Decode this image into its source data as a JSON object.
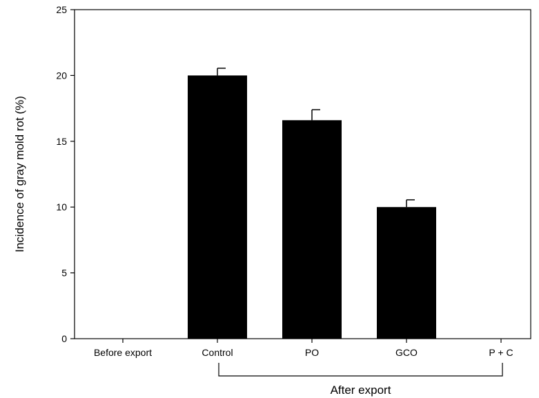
{
  "chart_data": {
    "type": "bar",
    "title": "",
    "ylabel": "Incidence of gray mold rot (%)",
    "xlabel": "",
    "categories": [
      "Before export",
      "Control",
      "PO",
      "GCO",
      "P + C"
    ],
    "values": [
      0,
      20.0,
      16.6,
      10.0,
      0
    ],
    "errors": [
      0,
      0.55,
      0.8,
      0.55,
      0
    ],
    "ylim": [
      0,
      25
    ],
    "yticks": [
      "0",
      "5",
      "10",
      "15",
      "20",
      "25"
    ],
    "ytick_values": [
      0,
      5,
      10,
      15,
      20,
      25
    ],
    "bar_color": "#000000",
    "grid": false,
    "legend": "none",
    "group_bracket": {
      "label": "After export",
      "from_category": 1,
      "to_category": 4
    }
  }
}
